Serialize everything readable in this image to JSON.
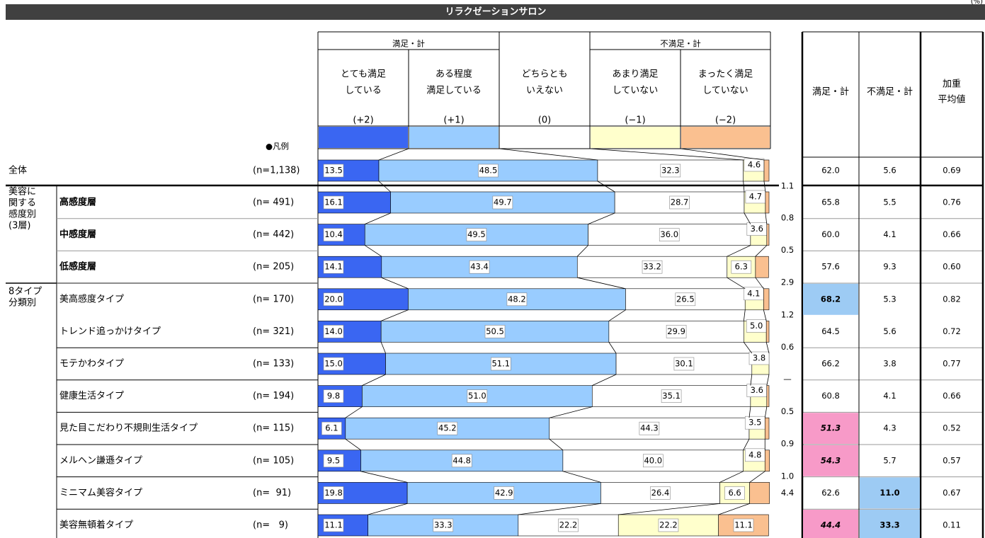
{
  "title": "リラクゼーションサロン",
  "unit": "(%)",
  "legend_label": "●凡例",
  "satisfied_group": "満足・計",
  "dissatisfied_group": "不満足・計",
  "group_labels": [
    {
      "lines": [
        "美容に",
        "関する",
        "感度別",
        "(3層)"
      ]
    },
    {
      "lines": [
        "8タイプ",
        "分類別"
      ]
    }
  ],
  "chart_data": {
    "type": "stacked-bar",
    "xlim": [
      0,
      100
    ],
    "categories": [
      "全体",
      "高感度層",
      "中感度層",
      "低感度層",
      "美高感度タイプ",
      "トレンド追っかけタイプ",
      "モテかわタイプ",
      "健康生活タイプ",
      "見た目こだわり不規則生活タイプ",
      "メルヘン謙遜タイプ",
      "ミニマム美容タイプ",
      "美容無頓着タイプ"
    ],
    "n_labels": [
      "(n=1,138)",
      "(n= 491)",
      "(n= 442)",
      "(n= 205)",
      "(n= 170)",
      "(n= 321)",
      "(n= 133)",
      "(n= 194)",
      "(n= 115)",
      "(n= 105)",
      "(n=  91)",
      "(n=   9)"
    ],
    "series": [
      {
        "name_lines": [
          "とても満足",
          "している"
        ],
        "code": "(+2)",
        "color": "#3a66f2",
        "values": [
          13.5,
          16.1,
          10.4,
          14.1,
          20.0,
          14.0,
          15.0,
          9.8,
          6.1,
          9.5,
          19.8,
          11.1
        ],
        "value_labels": [
          "13.5",
          "16.1",
          "10.4",
          "14.1",
          "20.0",
          "14.0",
          "15.0",
          "9.8",
          "6.1",
          "9.5",
          "19.8",
          "11.1"
        ]
      },
      {
        "name_lines": [
          "ある程度",
          "満足している"
        ],
        "code": "(+1)",
        "color": "#99ccff",
        "values": [
          48.5,
          49.7,
          49.5,
          43.4,
          48.2,
          50.5,
          51.1,
          51.0,
          45.2,
          44.8,
          42.9,
          33.3
        ],
        "value_labels": [
          "48.5",
          "49.7",
          "49.5",
          "43.4",
          "48.2",
          "50.5",
          "51.1",
          "51.0",
          "45.2",
          "44.8",
          "42.9",
          "33.3"
        ]
      },
      {
        "name_lines": [
          "どちらとも",
          "いえない"
        ],
        "code": "(0)",
        "color": "#ffffff",
        "values": [
          32.3,
          28.7,
          36.0,
          33.2,
          26.5,
          29.9,
          30.1,
          35.1,
          44.3,
          40.0,
          26.4,
          22.2
        ],
        "value_labels": [
          "32.3",
          "28.7",
          "36.0",
          "33.2",
          "26.5",
          "29.9",
          "30.1",
          "35.1",
          "44.3",
          "40.0",
          "26.4",
          "22.2"
        ]
      },
      {
        "name_lines": [
          "あまり満足",
          "していない"
        ],
        "code": "(−1)",
        "color": "#ffffcc",
        "values": [
          4.6,
          4.7,
          3.6,
          6.3,
          4.1,
          5.0,
          3.8,
          3.6,
          3.5,
          4.8,
          6.6,
          22.2
        ],
        "value_labels": [
          "4.6",
          "4.7",
          "3.6",
          "6.3",
          "4.1",
          "5.0",
          "3.8",
          "3.6",
          "3.5",
          "4.8",
          "6.6",
          "22.2"
        ]
      },
      {
        "name_lines": [
          "まったく満足",
          "していない"
        ],
        "code": "(−2)",
        "color": "#fac090",
        "values": [
          1.1,
          0.8,
          0.5,
          2.9,
          1.2,
          0.6,
          0,
          0.5,
          0.9,
          1.0,
          4.4,
          11.1
        ],
        "value_labels": [
          "1.1",
          "0.8",
          "0.5",
          "2.9",
          "1.2",
          "0.6",
          "—",
          "0.5",
          "0.9",
          "1.0",
          "4.4",
          "11.1"
        ]
      }
    ]
  },
  "summary": {
    "columns": [
      [
        "満足・計"
      ],
      [
        "不満足・計"
      ],
      [
        "加重",
        "平均値"
      ]
    ],
    "rows": [
      [
        "62.0",
        "5.6",
        "0.69"
      ],
      [
        "65.8",
        "5.5",
        "0.76"
      ],
      [
        "60.0",
        "4.1",
        "0.66"
      ],
      [
        "57.6",
        "9.3",
        "0.60"
      ],
      [
        "68.2",
        "5.3",
        "0.82"
      ],
      [
        "64.5",
        "5.6",
        "0.72"
      ],
      [
        "66.2",
        "3.8",
        "0.77"
      ],
      [
        "60.8",
        "4.1",
        "0.66"
      ],
      [
        "51.3",
        "4.3",
        "0.52"
      ],
      [
        "54.3",
        "5.7",
        "0.57"
      ],
      [
        "62.6",
        "11.0",
        "0.67"
      ],
      [
        "44.4",
        "33.3",
        "0.11"
      ]
    ]
  }
}
